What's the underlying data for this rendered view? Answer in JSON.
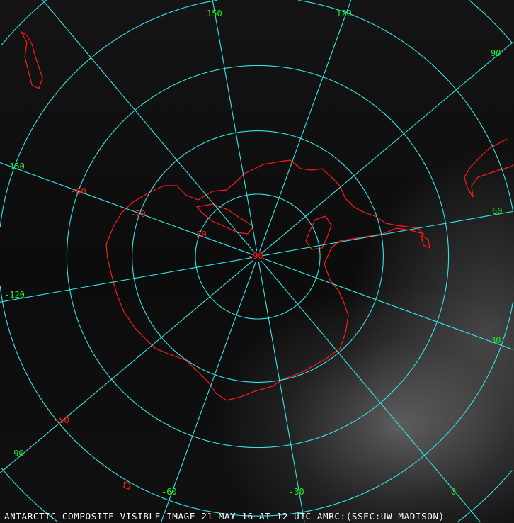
{
  "caption": "ANTARCTIC COMPOSITE VISIBLE IMAGE 21 MAY 16 AT 12 UTC AMRC:(SSEC:UW-MADISON)",
  "projection": "south polar stereographic",
  "colors": {
    "graticule": "#33e6e6",
    "coastline": "#ff1a1a",
    "longitude_labels": "#22ee22",
    "latitude_labels": "#ff2020"
  },
  "longitude_labels": [
    "150",
    "120",
    "90",
    "60",
    "30",
    "0",
    "-30",
    "-60",
    "-90",
    "-120",
    "-150"
  ],
  "latitude_labels": [
    "-90",
    "-80",
    "-70",
    "-60",
    "-50"
  ],
  "meridians_deg": [
    0,
    30,
    60,
    90,
    120,
    150,
    180,
    -150,
    -120,
    -90,
    -60,
    -30
  ],
  "parallels_deg": [
    -80,
    -70,
    -60,
    -50,
    -40
  ]
}
